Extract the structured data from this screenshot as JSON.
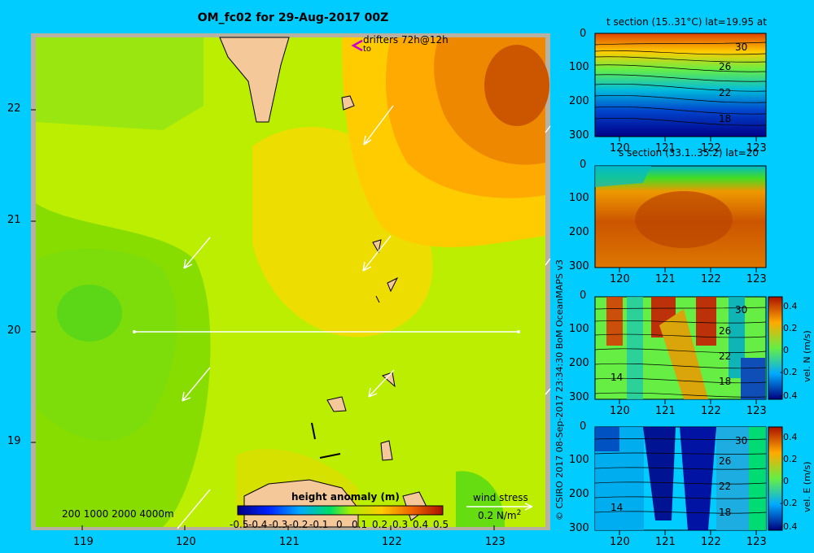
{
  "map": {
    "title": "OM_fc02 for 29-Aug-2017 00Z",
    "lat_ticks": [
      "22",
      "21",
      "20",
      "19"
    ],
    "lon_ticks": [
      "119",
      "120",
      "121",
      "122",
      "123"
    ],
    "drifters_label": "drifters 72h@12h",
    "drifters_sublabel": "to",
    "depth_legend": "200  1000  2000  4000m",
    "colorbar_title": "height anomaly (m)",
    "colorbar_ticks": [
      "-0.5",
      "-0.4",
      "-0.3",
      "-0.2",
      "-0.1",
      "0",
      "0.1",
      "0.2",
      "0.3",
      "0.4",
      "0.5"
    ],
    "wind_label": "wind stress",
    "wind_value": "0.2 N/m",
    "wind_exp": "2",
    "section_lat": 20.0,
    "section_lon_range": [
      119.5,
      123.2
    ]
  },
  "credit": "© CSIRO 2017   08-Sep-2017 23:34:30 BoM OceanMAPS v3",
  "panels": {
    "t_section": {
      "title": "t section (15..31°C) lat=19.95 at",
      "y_ticks": [
        "0",
        "100",
        "200",
        "300"
      ],
      "x_ticks": [
        "120",
        "121",
        "122",
        "123"
      ],
      "contour_labels": [
        "30",
        "26",
        "22",
        "18"
      ]
    },
    "s_section": {
      "title": "s section (33.1..35.2) lat=20",
      "y_ticks": [
        "0",
        "100",
        "200",
        "300"
      ],
      "x_ticks": [
        "120",
        "121",
        "122",
        "123"
      ]
    },
    "vn_section": {
      "y_ticks": [
        "0",
        "100",
        "200",
        "300"
      ],
      "x_ticks": [
        "120",
        "121",
        "122",
        "123"
      ],
      "contour_labels": [
        "30",
        "26",
        "22",
        "18",
        "14"
      ],
      "colorbar_ticks": [
        "0.4",
        "0.2",
        "0",
        "-0.2",
        "-0.4"
      ],
      "colorbar_label": "vel. N (m/s)"
    },
    "ve_section": {
      "y_ticks": [
        "0",
        "100",
        "200",
        "300"
      ],
      "x_ticks": [
        "120",
        "121",
        "122",
        "123"
      ],
      "contour_labels": [
        "30",
        "26",
        "22",
        "18",
        "14"
      ],
      "colorbar_ticks": [
        "0.4",
        "0.2",
        "0",
        "-0.2",
        "-0.4"
      ],
      "colorbar_label": "vel. E (m/s)"
    }
  },
  "colors": {
    "background": "#00ccff",
    "ssh_low": "#00cc22",
    "ssh_mid": "#aaee00",
    "ssh_high": "#cc5500",
    "land": "#f5c89a"
  }
}
